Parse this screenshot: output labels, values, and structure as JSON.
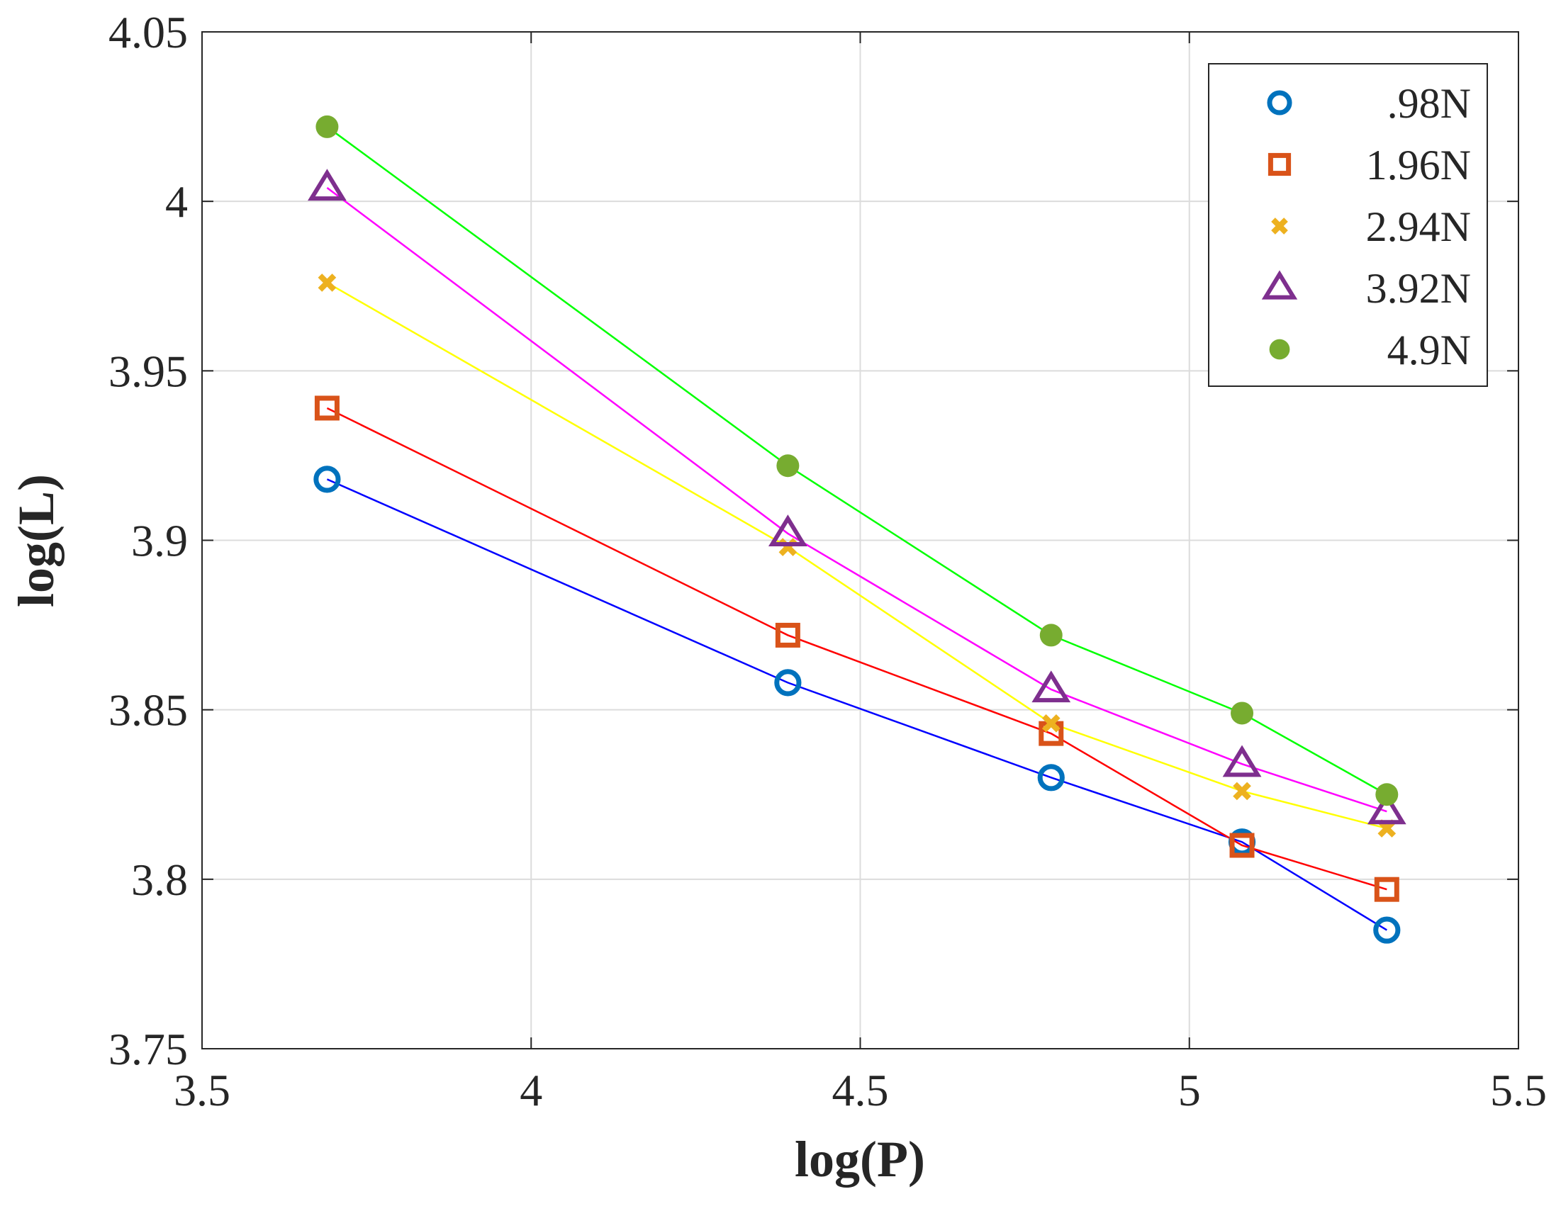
{
  "chart_data": {
    "type": "line",
    "title": "",
    "xlabel": "log(P)",
    "ylabel": "log(L)",
    "xlim": [
      3.5,
      5.5
    ],
    "ylim": [
      3.75,
      4.05
    ],
    "xticks": [
      3.5,
      4,
      4.5,
      5,
      5.5
    ],
    "yticks": [
      3.75,
      3.8,
      3.85,
      3.9,
      3.95,
      4,
      4.05
    ],
    "xtick_labels": [
      "3.5",
      "4",
      "4.5",
      "5",
      "5.5"
    ],
    "ytick_labels": [
      "3.75",
      "3.8",
      "3.85",
      "3.9",
      "3.95",
      "4",
      "4.05"
    ],
    "grid": true,
    "legend_position": "top-right",
    "x": [
      3.69,
      4.39,
      4.79,
      5.08,
      5.3
    ],
    "series": [
      {
        "name": ".98N",
        "marker": "circle",
        "marker_color": "#0072BD",
        "line_color": "#0000FF",
        "values": [
          3.918,
          3.858,
          3.83,
          3.811,
          3.785
        ]
      },
      {
        "name": "1.96N",
        "marker": "square",
        "marker_color": "#D95319",
        "line_color": "#FF0000",
        "values": [
          3.939,
          3.872,
          3.843,
          3.81,
          3.797
        ]
      },
      {
        "name": "2.94N",
        "marker": "x",
        "marker_color": "#EDB120",
        "line_color": "#FFFF00",
        "values": [
          3.976,
          3.898,
          3.846,
          3.826,
          3.815
        ]
      },
      {
        "name": "3.92N",
        "marker": "triangle",
        "marker_color": "#7E2F8E",
        "line_color": "#FF00FF",
        "values": [
          4.004,
          3.902,
          3.856,
          3.834,
          3.82
        ]
      },
      {
        "name": "4.9N",
        "marker": "dot",
        "marker_color": "#77AC30",
        "line_color": "#00FF00",
        "values": [
          4.022,
          3.922,
          3.872,
          3.849,
          3.825
        ]
      }
    ]
  }
}
